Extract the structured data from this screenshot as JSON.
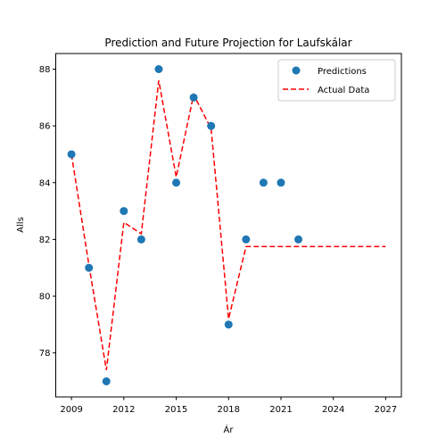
{
  "chart_data": {
    "type": "scatter",
    "title": "Prediction and Future Projection for Laufskálar",
    "xlabel": "Ár",
    "ylabel": "Alls",
    "xlim": [
      2008.1,
      2027.9
    ],
    "ylim": [
      76.45,
      88.55
    ],
    "xticks": [
      2009,
      2012,
      2015,
      2018,
      2021,
      2024,
      2027
    ],
    "yticks": [
      78,
      80,
      82,
      84,
      86,
      88
    ],
    "grid": false,
    "legend_position": "top-right",
    "series": [
      {
        "name": "Predictions",
        "kind": "scatter",
        "color": "#1f77b4",
        "x": [
          2009,
          2010,
          2011,
          2012,
          2013,
          2014,
          2015,
          2016,
          2017,
          2018,
          2019,
          2020,
          2021,
          2022
        ],
        "y": [
          85,
          81,
          77,
          83,
          82,
          88,
          84,
          87,
          86,
          79,
          82,
          84,
          84,
          82
        ]
      },
      {
        "name": "Actual Data",
        "kind": "line",
        "style": "dashed",
        "color": "#ff0000",
        "x": [
          2009,
          2010,
          2011,
          2012,
          2013,
          2014,
          2015,
          2016,
          2017,
          2018,
          2019,
          2020,
          2021,
          2022,
          2023,
          2024,
          2025,
          2026,
          2027
        ],
        "y": [
          85,
          81.1,
          77.4,
          82.6,
          82.2,
          87.6,
          84.2,
          87.1,
          85.9,
          79.2,
          81.75,
          81.75,
          81.75,
          81.75,
          81.75,
          81.75,
          81.75,
          81.75,
          81.75
        ]
      }
    ]
  }
}
